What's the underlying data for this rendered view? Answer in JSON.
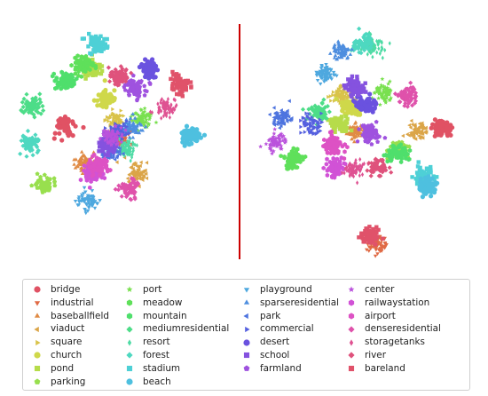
{
  "chart_data": [
    {
      "type": "scatter",
      "panel": "left",
      "title": "",
      "xlabel": "",
      "ylabel": "",
      "grid": false,
      "series": [
        {
          "name": "bridge",
          "x": [
            -2.4
          ],
          "y": [
            0.3
          ]
        },
        {
          "name": "industrial",
          "x": [
            0.0
          ],
          "y": [
            -0.2
          ]
        },
        {
          "name": "baseballfield",
          "x": [
            -1.5
          ],
          "y": [
            -1.2
          ]
        },
        {
          "name": "viaduct",
          "x": [
            0.8
          ],
          "y": [
            -1.6
          ]
        },
        {
          "name": "square",
          "x": [
            -0.2
          ],
          "y": [
            0.5
          ]
        },
        {
          "name": "church",
          "x": [
            -0.6
          ],
          "y": [
            1.4
          ]
        },
        {
          "name": "pond",
          "x": [
            -1.2
          ],
          "y": [
            2.6
          ]
        },
        {
          "name": "parking",
          "x": [
            -3.3
          ],
          "y": [
            -2.1
          ]
        },
        {
          "name": "port",
          "x": [
            1.0
          ],
          "y": [
            0.6
          ]
        },
        {
          "name": "meadow",
          "x": [
            -1.6
          ],
          "y": [
            2.7
          ]
        },
        {
          "name": "mountain",
          "x": [
            -2.4
          ],
          "y": [
            2.1
          ]
        },
        {
          "name": "mediumresidential",
          "x": [
            -3.8
          ],
          "y": [
            1.1
          ]
        },
        {
          "name": "resort",
          "x": [
            0.3
          ],
          "y": [
            -0.6
          ]
        },
        {
          "name": "forest",
          "x": [
            -3.9
          ],
          "y": [
            -0.4
          ]
        },
        {
          "name": "stadium",
          "x": [
            -1.0
          ],
          "y": [
            3.6
          ]
        },
        {
          "name": "beach",
          "x": [
            3.1
          ],
          "y": [
            -0.1
          ]
        },
        {
          "name": "playground",
          "x": [
            -1.4
          ],
          "y": [
            -2.7
          ]
        },
        {
          "name": "sparseresidential",
          "x": [
            0.5
          ],
          "y": [
            0.2
          ]
        },
        {
          "name": "park",
          "x": [
            -0.4
          ],
          "y": [
            -0.8
          ]
        },
        {
          "name": "commercial",
          "x": [
            -0.1
          ],
          "y": [
            0.1
          ]
        },
        {
          "name": "desert",
          "x": [
            1.3
          ],
          "y": [
            2.6
          ]
        },
        {
          "name": "school",
          "x": [
            -0.5
          ],
          "y": [
            -0.5
          ]
        },
        {
          "name": "farmland",
          "x": [
            0.7
          ],
          "y": [
            1.8
          ]
        },
        {
          "name": "center",
          "x": [
            -0.3
          ],
          "y": [
            -0.1
          ]
        },
        {
          "name": "railwaystation",
          "x": [
            -1.2
          ],
          "y": [
            -1.6
          ]
        },
        {
          "name": "airport",
          "x": [
            -0.9
          ],
          "y": [
            -1.3
          ]
        },
        {
          "name": "denseresidential",
          "x": [
            0.4
          ],
          "y": [
            -2.2
          ]
        },
        {
          "name": "storagetanks",
          "x": [
            2.0
          ],
          "y": [
            1.0
          ]
        },
        {
          "name": "river",
          "x": [
            0.0
          ],
          "y": [
            2.3
          ]
        },
        {
          "name": "bareland",
          "x": [
            2.6
          ],
          "y": [
            2.0
          ]
        }
      ]
    },
    {
      "type": "scatter",
      "panel": "right",
      "title": "",
      "xlabel": "",
      "ylabel": "",
      "grid": false,
      "series": [
        {
          "name": "bridge",
          "x": [
            3.0
          ],
          "y": [
            0.3
          ]
        },
        {
          "name": "industrial",
          "x": [
            0.4
          ],
          "y": [
            -5.1
          ]
        },
        {
          "name": "baseballfield",
          "x": [
            -0.4
          ],
          "y": [
            0.2
          ]
        },
        {
          "name": "viaduct",
          "x": [
            2.1
          ],
          "y": [
            0.2
          ]
        },
        {
          "name": "square",
          "x": [
            -1.0
          ],
          "y": [
            1.9
          ]
        },
        {
          "name": "church",
          "x": [
            -0.6
          ],
          "y": [
            1.3
          ]
        },
        {
          "name": "pond",
          "x": [
            -1.1
          ],
          "y": [
            0.5
          ]
        },
        {
          "name": "parking",
          "x": [
            1.3
          ],
          "y": [
            -0.7
          ]
        },
        {
          "name": "port",
          "x": [
            0.7
          ],
          "y": [
            2.0
          ]
        },
        {
          "name": "meadow",
          "x": [
            -2.9
          ],
          "y": [
            -1.1
          ]
        },
        {
          "name": "mountain",
          "x": [
            1.3
          ],
          "y": [
            -0.9
          ]
        },
        {
          "name": "mediumresidential",
          "x": [
            -1.9
          ],
          "y": [
            1.1
          ]
        },
        {
          "name": "resort",
          "x": [
            0.3
          ],
          "y": [
            4.1
          ]
        },
        {
          "name": "forest",
          "x": [
            -0.1
          ],
          "y": [
            4.3
          ]
        },
        {
          "name": "stadium",
          "x": [
            2.3
          ],
          "y": [
            -2.0
          ]
        },
        {
          "name": "beach",
          "x": [
            2.5
          ],
          "y": [
            -2.4
          ]
        },
        {
          "name": "playground",
          "x": [
            -1.6
          ],
          "y": [
            2.9
          ]
        },
        {
          "name": "sparseresidential",
          "x": [
            -1.0
          ],
          "y": [
            3.9
          ]
        },
        {
          "name": "park",
          "x": [
            -3.4
          ],
          "y": [
            0.8
          ]
        },
        {
          "name": "commercial",
          "x": [
            -2.2
          ],
          "y": [
            0.5
          ]
        },
        {
          "name": "desert",
          "x": [
            0.0
          ],
          "y": [
            1.4
          ]
        },
        {
          "name": "school",
          "x": [
            -0.4
          ],
          "y": [
            2.2
          ]
        },
        {
          "name": "farmland",
          "x": [
            0.2
          ],
          "y": [
            0.1
          ]
        },
        {
          "name": "center",
          "x": [
            -3.6
          ],
          "y": [
            -0.3
          ]
        },
        {
          "name": "railwaystation",
          "x": [
            -1.2
          ],
          "y": [
            -1.5
          ]
        },
        {
          "name": "airport",
          "x": [
            -1.3
          ],
          "y": [
            -0.5
          ]
        },
        {
          "name": "denseresidential",
          "x": [
            1.7
          ],
          "y": [
            1.8
          ]
        },
        {
          "name": "storagetanks",
          "x": [
            -0.5
          ],
          "y": [
            -1.6
          ]
        },
        {
          "name": "river",
          "x": [
            0.5
          ],
          "y": [
            -1.5
          ]
        },
        {
          "name": "bareland",
          "x": [
            0.2
          ],
          "y": [
            -4.7
          ]
        }
      ]
    }
  ],
  "legend": {
    "placement": "bottom",
    "items": [
      {
        "label": "bridge",
        "marker": "circle",
        "color": "#e05264"
      },
      {
        "label": "industrial",
        "marker": "triangle-down",
        "color": "#e06a45"
      },
      {
        "label": "baseballfield",
        "marker": "triangle-up",
        "color": "#e08b45"
      },
      {
        "label": "viaduct",
        "marker": "triangle-left",
        "color": "#dba548"
      },
      {
        "label": "square",
        "marker": "triangle-right",
        "color": "#d9c34a"
      },
      {
        "label": "church",
        "marker": "circle",
        "color": "#cfd84a"
      },
      {
        "label": "pond",
        "marker": "square",
        "color": "#b6dc4a"
      },
      {
        "label": "parking",
        "marker": "pentagon",
        "color": "#98df4e"
      },
      {
        "label": "port",
        "marker": "star",
        "color": "#79e04f"
      },
      {
        "label": "meadow",
        "marker": "hexagon",
        "color": "#5fe05a"
      },
      {
        "label": "mountain",
        "marker": "hexagon",
        "color": "#4fdf6c"
      },
      {
        "label": "mediumresidential",
        "marker": "diamond",
        "color": "#4ddd88"
      },
      {
        "label": "resort",
        "marker": "thin-diamond",
        "color": "#4edba5"
      },
      {
        "label": "forest",
        "marker": "diamond",
        "color": "#4ed8c0"
      },
      {
        "label": "stadium",
        "marker": "square",
        "color": "#4ed0d6"
      },
      {
        "label": "beach",
        "marker": "circle",
        "color": "#4ec0df"
      },
      {
        "label": "playground",
        "marker": "triangle-down",
        "color": "#4ea8df"
      },
      {
        "label": "sparseresidential",
        "marker": "triangle-up",
        "color": "#4e8edf"
      },
      {
        "label": "park",
        "marker": "triangle-left",
        "color": "#4e74df"
      },
      {
        "label": "commercial",
        "marker": "triangle-right",
        "color": "#5560df"
      },
      {
        "label": "desert",
        "marker": "circle",
        "color": "#6a52df"
      },
      {
        "label": "school",
        "marker": "square",
        "color": "#8552df"
      },
      {
        "label": "farmland",
        "marker": "pentagon",
        "color": "#9f52df"
      },
      {
        "label": "center",
        "marker": "star",
        "color": "#ba52dc"
      },
      {
        "label": "railwaystation",
        "marker": "hexagon",
        "color": "#d152d6"
      },
      {
        "label": "airport",
        "marker": "hexagon",
        "color": "#dd52c4"
      },
      {
        "label": "denseresidential",
        "marker": "diamond",
        "color": "#df52ab"
      },
      {
        "label": "storagetanks",
        "marker": "thin-diamond",
        "color": "#df5292"
      },
      {
        "label": "river",
        "marker": "diamond",
        "color": "#df527c"
      },
      {
        "label": "bareland",
        "marker": "square",
        "color": "#e0526a"
      }
    ]
  },
  "divider": {
    "color": "#cc0000"
  }
}
